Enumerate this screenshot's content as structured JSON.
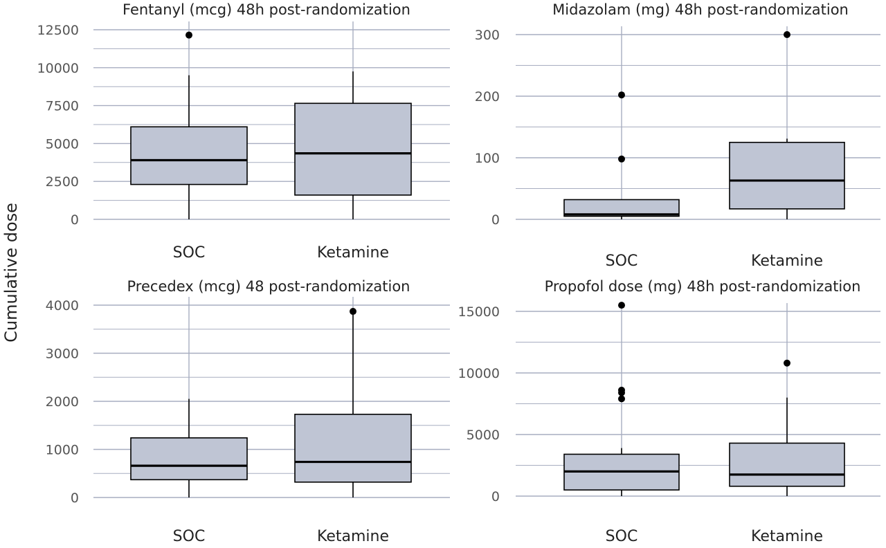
{
  "y_axis_label": "Cumulative dose",
  "colors": {
    "box_fill": "#bfc5d4",
    "grid": "#a7adc0",
    "box_stroke": "#000000",
    "outlier": "#000000"
  },
  "chart_data": [
    {
      "type": "box",
      "title": "Fentanyl (mcg) 48h post-randomization",
      "categories": [
        "SOC",
        "Ketamine"
      ],
      "ylim": [
        0,
        12500
      ],
      "yticks": [
        0,
        2500,
        5000,
        7500,
        10000,
        12500
      ],
      "ytick_labels": [
        "0",
        "2500",
        "5000",
        "7500",
        "10000",
        "12500"
      ],
      "boxes": [
        {
          "category": "SOC",
          "min": 0,
          "q1": 2300,
          "median": 3900,
          "q3": 6100,
          "max": 9500,
          "outliers": [
            12150
          ]
        },
        {
          "category": "Ketamine",
          "min": 0,
          "q1": 1600,
          "median": 4350,
          "q3": 7650,
          "max": 9750,
          "outliers": []
        }
      ]
    },
    {
      "type": "box",
      "title": "Midazolam (mg) 48h post-randomization",
      "categories": [
        "SOC",
        "Ketamine"
      ],
      "ylim": [
        0,
        300
      ],
      "yticks": [
        0,
        100,
        200,
        300
      ],
      "ytick_labels": [
        "0",
        "100",
        "200",
        "300"
      ],
      "boxes": [
        {
          "category": "SOC",
          "min": 0,
          "q1": 5,
          "median": 8,
          "q3": 32,
          "max": 32,
          "outliers": [
            98,
            202
          ]
        },
        {
          "category": "Ketamine",
          "min": 0,
          "q1": 17,
          "median": 63,
          "q3": 125,
          "max": 131,
          "outliers": [
            300
          ]
        }
      ]
    },
    {
      "type": "box",
      "title": "Precedex (mcg) 48 post-randomization",
      "categories": [
        "SOC",
        "Ketamine"
      ],
      "ylim": [
        0,
        4000
      ],
      "yticks": [
        0,
        1000,
        2000,
        3000,
        4000
      ],
      "ytick_labels": [
        "0",
        "1000",
        "2000",
        "3000",
        "4000"
      ],
      "boxes": [
        {
          "category": "SOC",
          "min": 0,
          "q1": 370,
          "median": 660,
          "q3": 1240,
          "max": 2050,
          "outliers": []
        },
        {
          "category": "Ketamine",
          "min": 0,
          "q1": 320,
          "median": 740,
          "q3": 1730,
          "max": 3870,
          "outliers": [
            3870
          ]
        }
      ]
    },
    {
      "type": "box",
      "title": "Propofol dose (mg) 48h post-randomization",
      "categories": [
        "SOC",
        "Ketamine"
      ],
      "ylim": [
        0,
        15000
      ],
      "yticks": [
        0,
        5000,
        10000,
        15000
      ],
      "ytick_labels": [
        "0",
        "5000",
        "10000",
        "15000"
      ],
      "boxes": [
        {
          "category": "SOC",
          "min": 0,
          "q1": 500,
          "median": 2000,
          "q3": 3400,
          "max": 3900,
          "outliers": [
            7900,
            8400,
            8600,
            15500
          ]
        },
        {
          "category": "Ketamine",
          "min": 0,
          "q1": 800,
          "median": 1750,
          "q3": 4300,
          "max": 8000,
          "outliers": [
            10800
          ]
        }
      ]
    }
  ]
}
